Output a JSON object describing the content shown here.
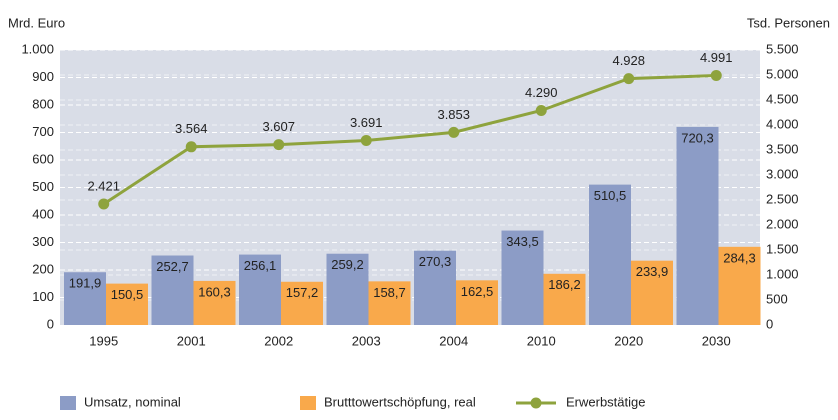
{
  "chart_data": {
    "type": "bar-line",
    "y_label": "Mrd. Euro",
    "y2_label": "Tsd. Personen",
    "categories": [
      "1995",
      "2001",
      "2002",
      "2003",
      "2004",
      "2010",
      "2020",
      "2030"
    ],
    "series": [
      {
        "name": "Umsatz, nominal",
        "type": "bar",
        "color": "#8c9cc6",
        "values": [
          191.9,
          252.7,
          256.1,
          259.2,
          270.3,
          343.5,
          510.5,
          720.3
        ],
        "value_labels": [
          "191,9",
          "252,7",
          "256,1",
          "259,2",
          "270,3",
          "343,5",
          "510,5",
          "720,3"
        ]
      },
      {
        "name": "Brutttowertschöpfung, real",
        "type": "bar",
        "color": "#f9a94b",
        "values": [
          150.5,
          160.3,
          157.2,
          158.7,
          162.5,
          186.2,
          233.9,
          284.3
        ],
        "value_labels": [
          "150,5",
          "160,3",
          "157,2",
          "158,7",
          "162,5",
          "186,2",
          "233,9",
          "284,3"
        ]
      },
      {
        "name": "Erwerbstätige",
        "type": "line",
        "axis": "y2",
        "color": "#8ea33d",
        "values": [
          2421,
          3564,
          3607,
          3691,
          3853,
          4290,
          4928,
          4991
        ],
        "value_labels": [
          "2.421",
          "3.564",
          "3.607",
          "3.691",
          "3.853",
          "4.290",
          "4.928",
          "4.991"
        ]
      }
    ],
    "ylim": [
      0,
      1000
    ],
    "yticks": [
      0,
      100,
      200,
      300,
      400,
      500,
      600,
      700,
      800,
      900,
      {
        "value": 1000,
        "label": "1.000"
      }
    ],
    "y2lim": [
      0,
      5500
    ],
    "y2ticks": [
      0,
      500,
      {
        "value": 1000,
        "label": "1.000"
      },
      {
        "value": 1500,
        "label": "1.500"
      },
      {
        "value": 2000,
        "label": "2.000"
      },
      {
        "value": 2500,
        "label": "2.500"
      },
      {
        "value": 3000,
        "label": "3.000"
      },
      {
        "value": 3500,
        "label": "3.500"
      },
      {
        "value": 4000,
        "label": "4.000"
      },
      {
        "value": 4500,
        "label": "4.500"
      },
      {
        "value": 5000,
        "label": "5.000"
      },
      {
        "value": 5500,
        "label": "5.500"
      }
    ],
    "grid": true,
    "legend": "bottom"
  }
}
